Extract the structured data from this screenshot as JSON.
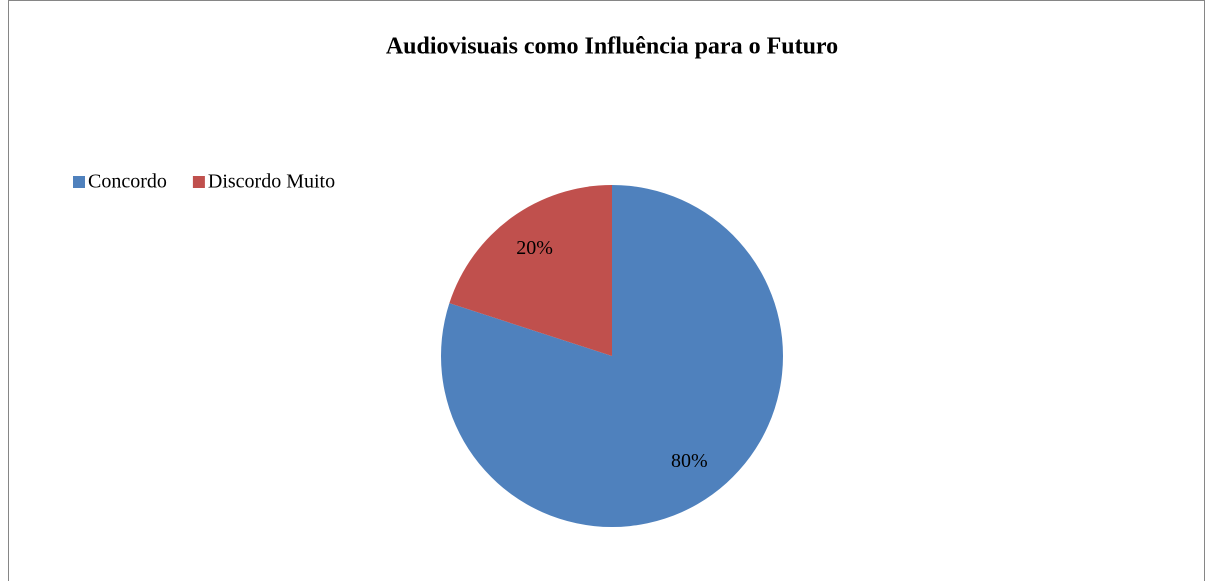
{
  "chart_data": {
    "type": "pie",
    "title": "Audiovisuais como Influência para o Futuro",
    "categories": [
      "Concordo",
      "Discordo Muito"
    ],
    "values": [
      80,
      20
    ],
    "value_labels": [
      "80%",
      "20%"
    ],
    "colors": [
      "#4f81bd",
      "#c0504d"
    ],
    "legend": "top-left"
  }
}
